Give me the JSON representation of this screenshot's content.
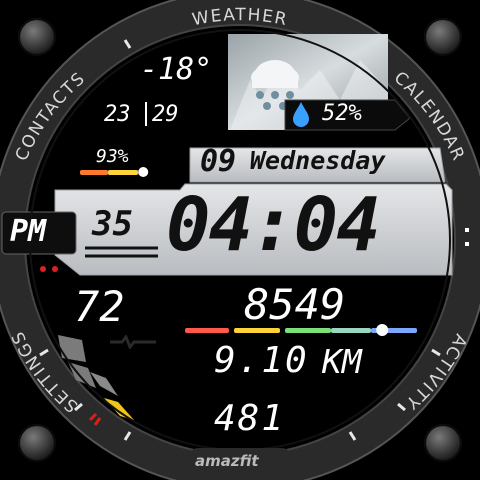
{
  "ring_labels": {
    "weather": "WEATHER",
    "calendar": "CALENDAR",
    "activity": "ACTIVITY",
    "settings": "SETTINGS",
    "contacts": "CONTACTS"
  },
  "weather": {
    "temperature": "-18°",
    "low": "23",
    "high": "29",
    "humidity": "52%",
    "icon": "snow-cloud-icon"
  },
  "battery": {
    "percent_label": "93%",
    "level": 0.93
  },
  "date": {
    "day": "09",
    "weekday": "Wednesday"
  },
  "time": {
    "ampm": "PM",
    "seconds": "35",
    "hh_mm": "04:04"
  },
  "heart_rate": {
    "value": "72"
  },
  "steps": {
    "value": "8549",
    "progress": 0.85
  },
  "distance": {
    "value": "9.10",
    "unit": "KM"
  },
  "calories": {
    "value": "481"
  },
  "brand": {
    "logo": "amazfit"
  },
  "colors": {
    "accent_blue": "#3aa0ff",
    "battery_orange": "#ff7a2a",
    "bezel": "#2b2b2b",
    "panel": "#c9ccd0"
  }
}
